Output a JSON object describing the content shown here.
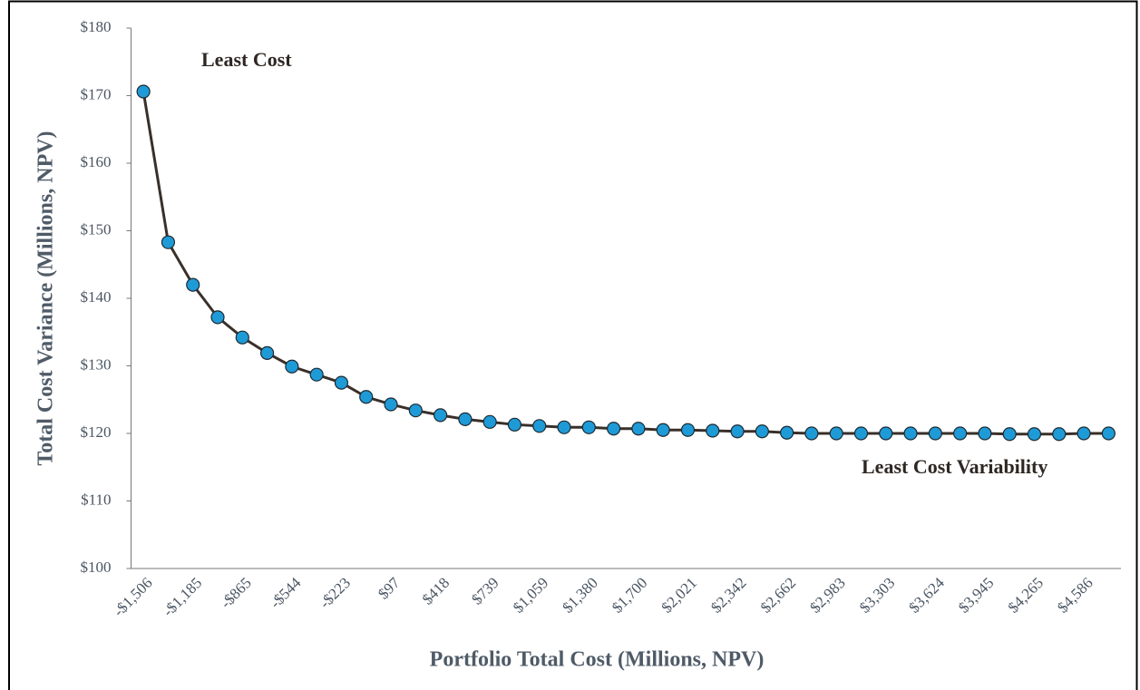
{
  "chart_data": {
    "type": "line",
    "xlabel": "Portfolio Total Cost (Millions, NPV)",
    "ylabel": "Total Cost Variance (Millions, NPV)",
    "annotations": [
      "Least Cost",
      "Least Cost Variability"
    ],
    "categories": [
      "-$1,506",
      null,
      "-$1,185",
      null,
      "-$865",
      null,
      "-$544",
      null,
      "-$223",
      null,
      "$97",
      null,
      "$418",
      null,
      "$739",
      null,
      "$1,059",
      null,
      "$1,380",
      null,
      "$1,700",
      null,
      "$2,021",
      null,
      "$2,342",
      null,
      "$2,662",
      null,
      "$2,983",
      null,
      "$3,303",
      null,
      "$3,624",
      null,
      "$3,945",
      null,
      "$4,265",
      null,
      "$4,586",
      null
    ],
    "series": [
      {
        "name": "Total Cost Variance",
        "color": "#3a3029",
        "marker_color": "#1e9bd7",
        "values": [
          170.6,
          148.3,
          142.0,
          137.2,
          134.2,
          131.9,
          129.9,
          128.7,
          127.5,
          125.4,
          124.3,
          123.4,
          122.7,
          122.1,
          121.7,
          121.3,
          121.1,
          120.9,
          120.9,
          120.7,
          120.7,
          120.5,
          120.5,
          120.4,
          120.3,
          120.3,
          120.1,
          120.0,
          120.0,
          120.0,
          120.0,
          120.0,
          120.0,
          120.0,
          120.0,
          119.9,
          119.9,
          119.9,
          120.0,
          120.0
        ]
      }
    ],
    "ylim": [
      100,
      180
    ],
    "yticks": [
      {
        "value": 100,
        "label": "$100"
      },
      {
        "value": 110,
        "label": "$110"
      },
      {
        "value": 120,
        "label": "$120"
      },
      {
        "value": 130,
        "label": "$130"
      },
      {
        "value": 140,
        "label": "$140"
      },
      {
        "value": 150,
        "label": "$150"
      },
      {
        "value": 160,
        "label": "$160"
      },
      {
        "value": 170,
        "label": "$170"
      },
      {
        "value": 180,
        "label": "$180"
      }
    ],
    "grid": false
  }
}
